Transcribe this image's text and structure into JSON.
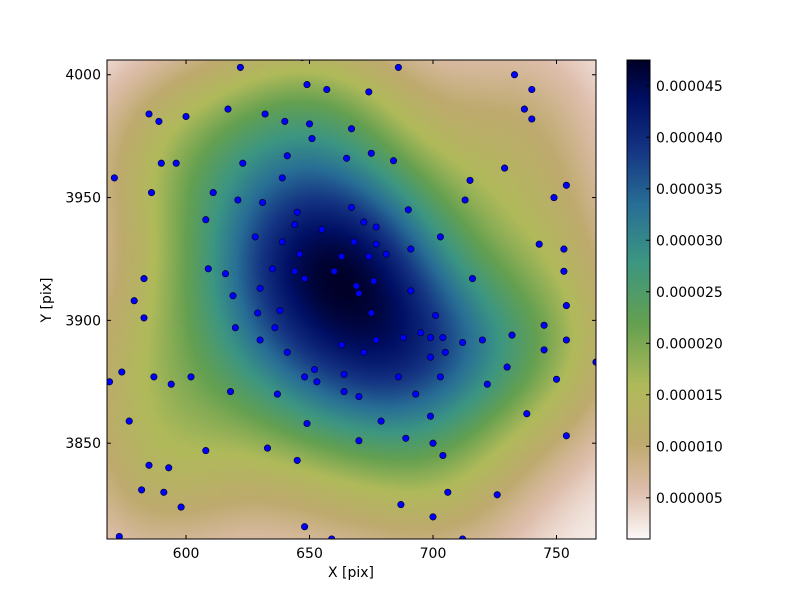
{
  "chart_data": {
    "type": "heatmap",
    "title": "",
    "xlabel": "X [pix]",
    "ylabel": "Y [pix]",
    "xlim": [
      568,
      766
    ],
    "ylim": [
      3811,
      4006
    ],
    "x_ticks": [
      600,
      650,
      700,
      750
    ],
    "y_ticks": [
      3850,
      3900,
      3950,
      4000
    ],
    "colormap": "gist_earth_r",
    "colorbar": {
      "range": [
        1e-06,
        4.75e-05
      ],
      "ticks": [
        "0.000005",
        "0.000010",
        "0.000015",
        "0.000020",
        "0.000025",
        "0.000030",
        "0.000035",
        "0.000040",
        "0.000045"
      ]
    },
    "density_peak": {
      "x": 660,
      "y": 3920,
      "value": 4.75e-05
    },
    "density_ridge": [
      {
        "x": 660,
        "y": 3920
      },
      {
        "x": 690,
        "y": 3893
      }
    ],
    "scatter_color": "#0000ff",
    "points": [
      {
        "x": 569,
        "y": 3875
      },
      {
        "x": 573,
        "y": 3812
      },
      {
        "x": 574,
        "y": 3879
      },
      {
        "x": 571,
        "y": 3958
      },
      {
        "x": 577,
        "y": 3859
      },
      {
        "x": 579,
        "y": 3908
      },
      {
        "x": 582,
        "y": 3831
      },
      {
        "x": 583,
        "y": 3917
      },
      {
        "x": 583,
        "y": 3901
      },
      {
        "x": 585,
        "y": 3841
      },
      {
        "x": 585,
        "y": 3984
      },
      {
        "x": 586,
        "y": 3952
      },
      {
        "x": 587,
        "y": 3877
      },
      {
        "x": 589,
        "y": 3981
      },
      {
        "x": 590,
        "y": 3964
      },
      {
        "x": 591,
        "y": 3830
      },
      {
        "x": 593,
        "y": 3840
      },
      {
        "x": 594,
        "y": 3874
      },
      {
        "x": 596,
        "y": 3964
      },
      {
        "x": 598,
        "y": 3824
      },
      {
        "x": 600,
        "y": 3983
      },
      {
        "x": 602,
        "y": 3877
      },
      {
        "x": 608,
        "y": 3847
      },
      {
        "x": 608,
        "y": 3941
      },
      {
        "x": 609,
        "y": 3921
      },
      {
        "x": 611,
        "y": 3952
      },
      {
        "x": 616,
        "y": 3919
      },
      {
        "x": 617,
        "y": 3986
      },
      {
        "x": 618,
        "y": 3871
      },
      {
        "x": 619,
        "y": 3910
      },
      {
        "x": 620,
        "y": 3897
      },
      {
        "x": 621,
        "y": 3949
      },
      {
        "x": 622,
        "y": 4003
      },
      {
        "x": 623,
        "y": 3964
      },
      {
        "x": 628,
        "y": 3934
      },
      {
        "x": 629,
        "y": 3903
      },
      {
        "x": 630,
        "y": 3892
      },
      {
        "x": 630,
        "y": 3913
      },
      {
        "x": 631,
        "y": 3948
      },
      {
        "x": 632,
        "y": 3984
      },
      {
        "x": 633,
        "y": 3848
      },
      {
        "x": 635,
        "y": 3921
      },
      {
        "x": 636,
        "y": 3897
      },
      {
        "x": 637,
        "y": 3870
      },
      {
        "x": 638,
        "y": 3904
      },
      {
        "x": 639,
        "y": 3932
      },
      {
        "x": 639,
        "y": 3958
      },
      {
        "x": 640,
        "y": 3981
      },
      {
        "x": 641,
        "y": 3887
      },
      {
        "x": 641,
        "y": 3967
      },
      {
        "x": 644,
        "y": 3939
      },
      {
        "x": 644,
        "y": 3920
      },
      {
        "x": 645,
        "y": 3944
      },
      {
        "x": 645,
        "y": 3843
      },
      {
        "x": 646,
        "y": 3927
      },
      {
        "x": 647,
        "y": 4007
      },
      {
        "x": 648,
        "y": 3877
      },
      {
        "x": 648,
        "y": 3917
      },
      {
        "x": 648,
        "y": 3816
      },
      {
        "x": 649,
        "y": 3996
      },
      {
        "x": 649,
        "y": 3858
      },
      {
        "x": 650,
        "y": 3980
      },
      {
        "x": 651,
        "y": 3974
      },
      {
        "x": 652,
        "y": 3880
      },
      {
        "x": 653,
        "y": 3875
      },
      {
        "x": 655,
        "y": 3937
      },
      {
        "x": 657,
        "y": 3994
      },
      {
        "x": 659,
        "y": 3811
      },
      {
        "x": 660,
        "y": 3920
      },
      {
        "x": 663,
        "y": 3926
      },
      {
        "x": 663,
        "y": 3890
      },
      {
        "x": 664,
        "y": 3871
      },
      {
        "x": 664,
        "y": 3878
      },
      {
        "x": 665,
        "y": 3966
      },
      {
        "x": 667,
        "y": 3978
      },
      {
        "x": 667,
        "y": 3946
      },
      {
        "x": 668,
        "y": 3932
      },
      {
        "x": 669,
        "y": 3914
      },
      {
        "x": 670,
        "y": 3911
      },
      {
        "x": 670,
        "y": 3869
      },
      {
        "x": 670,
        "y": 3851
      },
      {
        "x": 672,
        "y": 3887
      },
      {
        "x": 672,
        "y": 3940
      },
      {
        "x": 674,
        "y": 3926
      },
      {
        "x": 674,
        "y": 3993
      },
      {
        "x": 675,
        "y": 3968
      },
      {
        "x": 675,
        "y": 3903
      },
      {
        "x": 676,
        "y": 3916
      },
      {
        "x": 677,
        "y": 3931
      },
      {
        "x": 677,
        "y": 3938
      },
      {
        "x": 677,
        "y": 3892
      },
      {
        "x": 679,
        "y": 3859
      },
      {
        "x": 681,
        "y": 3927
      },
      {
        "x": 684,
        "y": 3965
      },
      {
        "x": 686,
        "y": 4003
      },
      {
        "x": 686,
        "y": 3877
      },
      {
        "x": 687,
        "y": 3825
      },
      {
        "x": 688,
        "y": 3893
      },
      {
        "x": 689,
        "y": 3852
      },
      {
        "x": 690,
        "y": 3945
      },
      {
        "x": 691,
        "y": 3929
      },
      {
        "x": 691,
        "y": 3912
      },
      {
        "x": 693,
        "y": 3870
      },
      {
        "x": 695,
        "y": 3895
      },
      {
        "x": 699,
        "y": 3885
      },
      {
        "x": 699,
        "y": 3861
      },
      {
        "x": 699,
        "y": 3893
      },
      {
        "x": 700,
        "y": 3850
      },
      {
        "x": 700,
        "y": 3820
      },
      {
        "x": 701,
        "y": 3902
      },
      {
        "x": 703,
        "y": 3934
      },
      {
        "x": 703,
        "y": 3877
      },
      {
        "x": 704,
        "y": 3893
      },
      {
        "x": 704,
        "y": 3845
      },
      {
        "x": 705,
        "y": 3887
      },
      {
        "x": 706,
        "y": 3830
      },
      {
        "x": 712,
        "y": 3891
      },
      {
        "x": 712,
        "y": 3811
      },
      {
        "x": 713,
        "y": 3949
      },
      {
        "x": 715,
        "y": 3957
      },
      {
        "x": 716,
        "y": 3917
      },
      {
        "x": 720,
        "y": 3892
      },
      {
        "x": 722,
        "y": 3874
      },
      {
        "x": 726,
        "y": 3829
      },
      {
        "x": 729,
        "y": 3962
      },
      {
        "x": 730,
        "y": 3881
      },
      {
        "x": 732,
        "y": 3894
      },
      {
        "x": 733,
        "y": 4000
      },
      {
        "x": 737,
        "y": 3986
      },
      {
        "x": 738,
        "y": 3862
      },
      {
        "x": 740,
        "y": 3994
      },
      {
        "x": 740,
        "y": 3982
      },
      {
        "x": 743,
        "y": 3931
      },
      {
        "x": 745,
        "y": 3898
      },
      {
        "x": 745,
        "y": 3888
      },
      {
        "x": 749,
        "y": 3950
      },
      {
        "x": 750,
        "y": 3876
      },
      {
        "x": 753,
        "y": 3920
      },
      {
        "x": 753,
        "y": 3929
      },
      {
        "x": 754,
        "y": 3955
      },
      {
        "x": 754,
        "y": 3906
      },
      {
        "x": 754,
        "y": 3892
      },
      {
        "x": 754,
        "y": 3853
      },
      {
        "x": 766,
        "y": 3883
      }
    ]
  }
}
